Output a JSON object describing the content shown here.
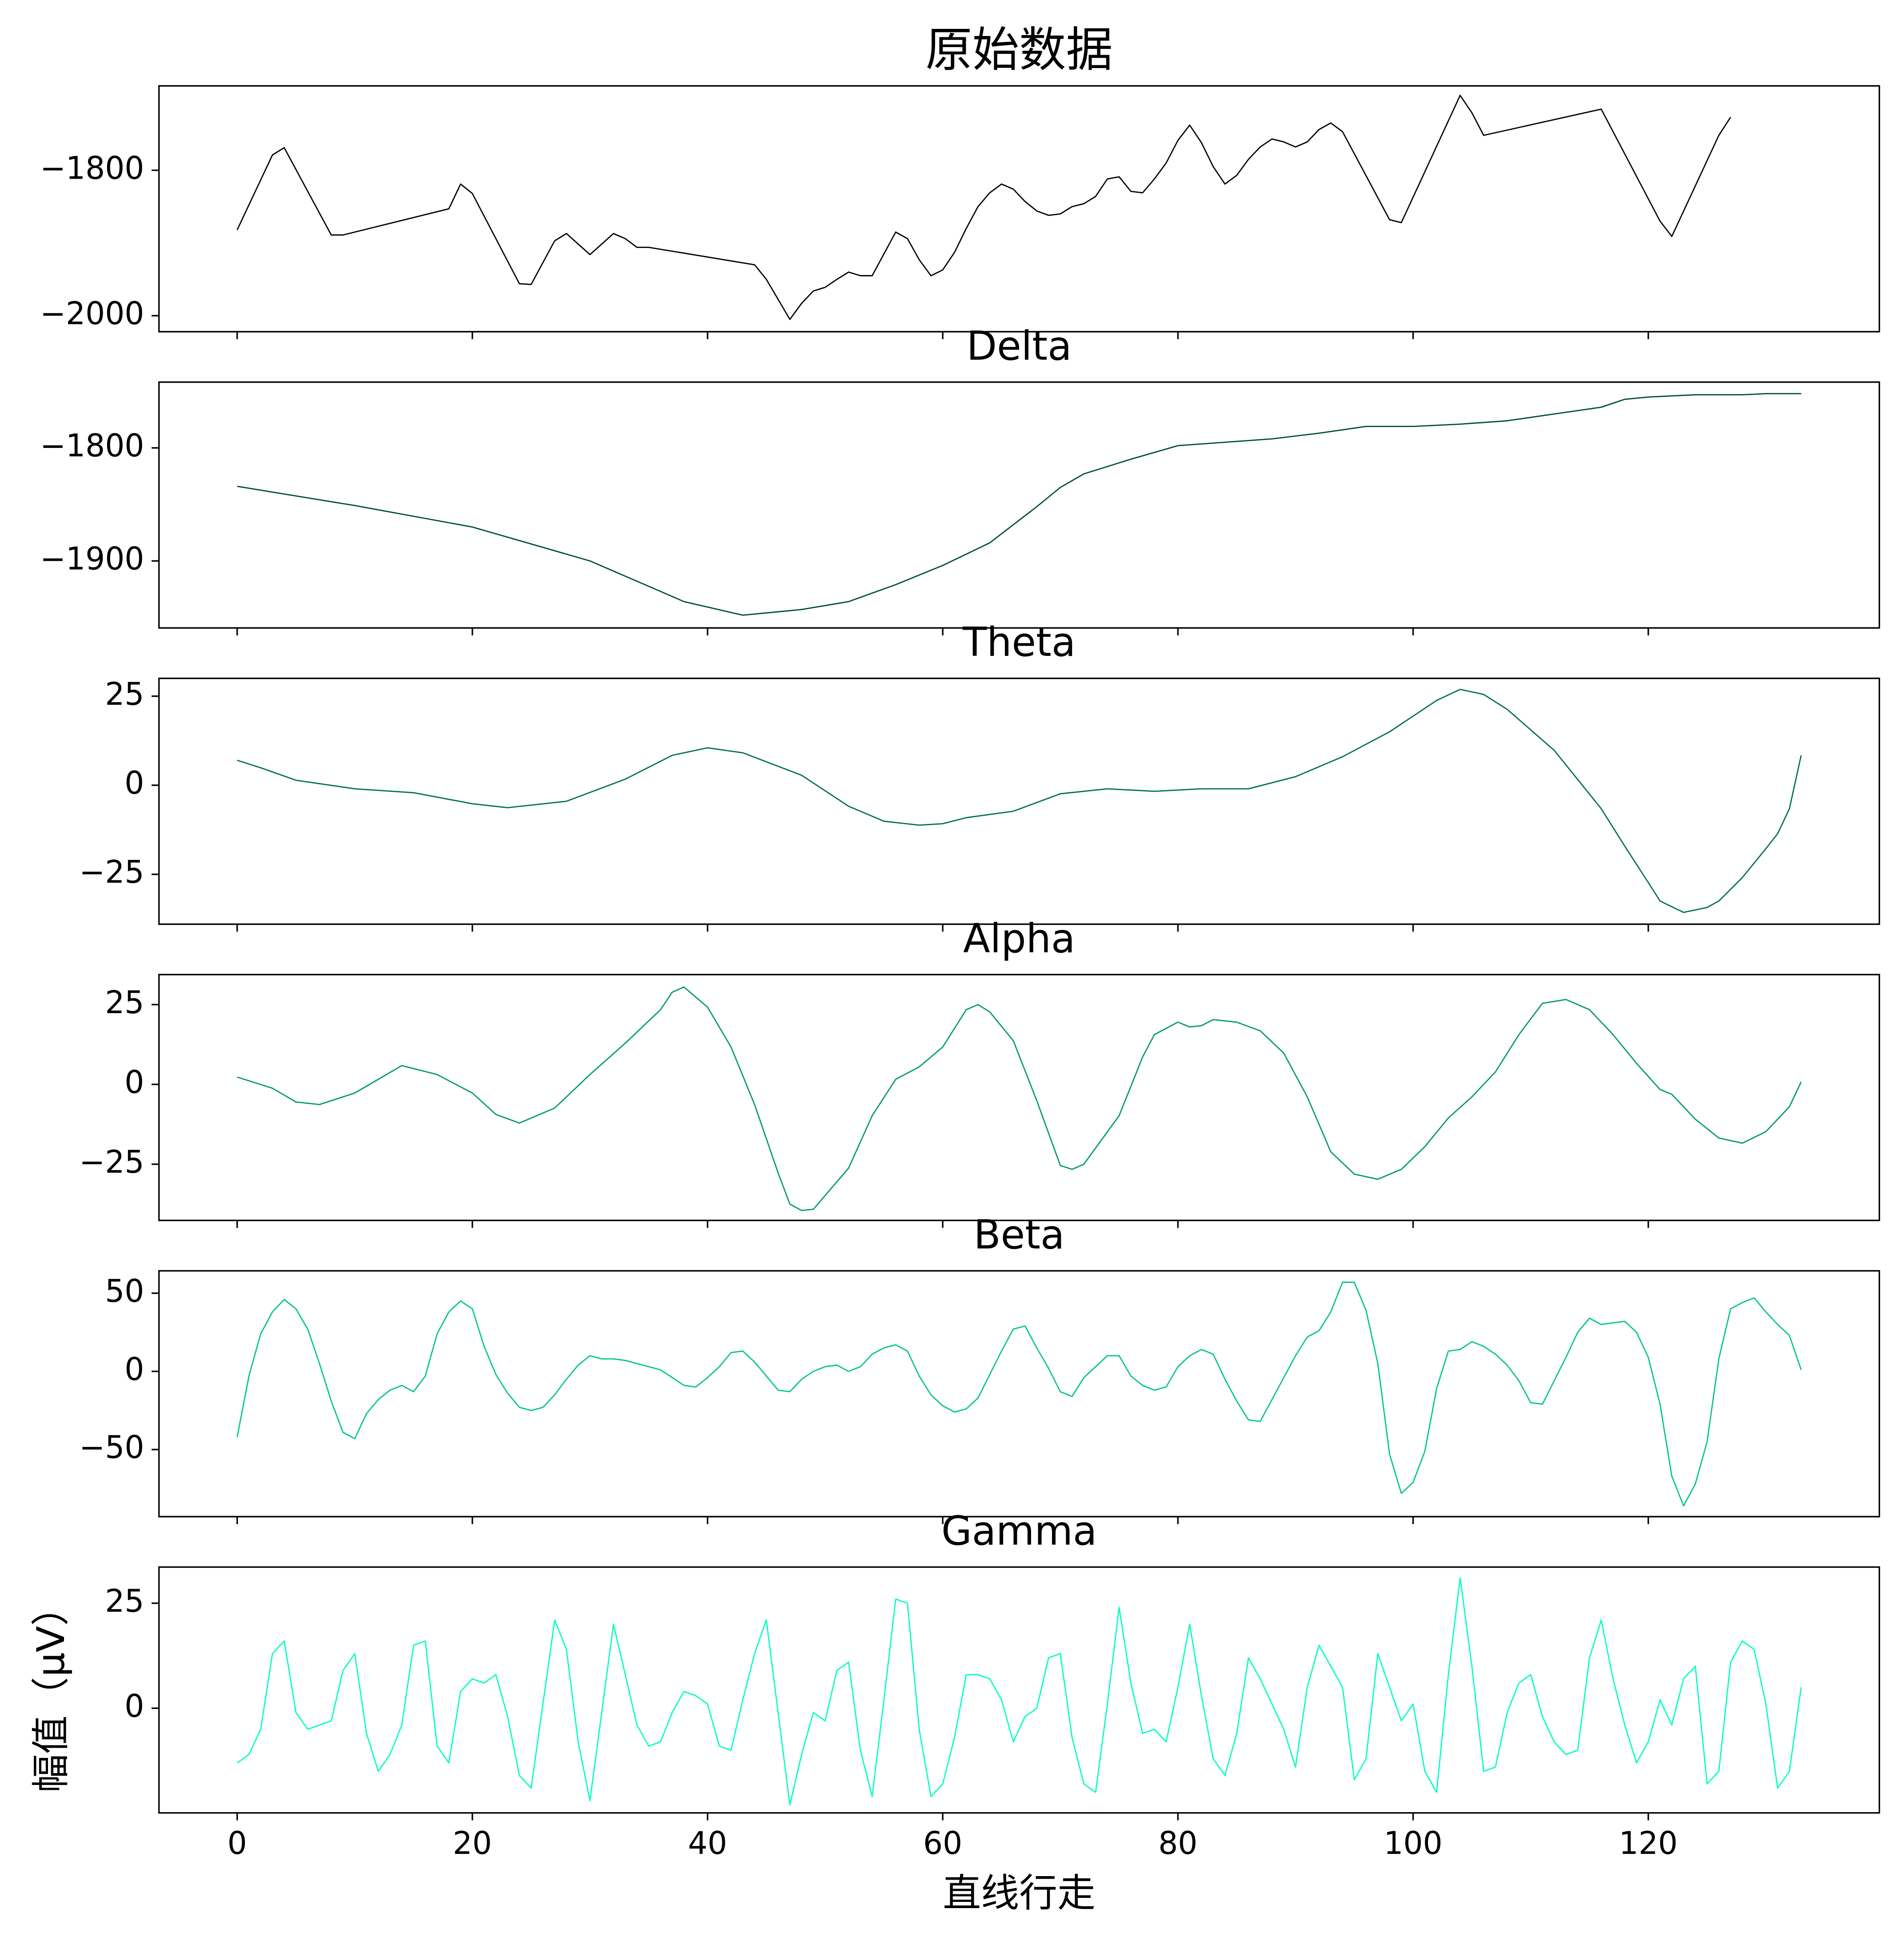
{
  "chart_data": [
    {
      "type": "line",
      "title": "原始数据",
      "color": "#000000",
      "x": [
        0,
        3,
        4,
        8,
        9,
        18,
        19,
        20,
        24,
        25,
        27,
        28,
        30,
        32,
        33,
        34,
        35,
        44,
        45,
        47,
        48,
        49,
        50,
        51,
        52,
        53,
        54,
        56,
        57,
        58,
        59,
        60,
        61,
        62,
        63,
        64,
        65,
        66,
        67,
        68,
        69,
        70,
        71,
        72,
        73,
        74,
        75,
        76,
        77,
        78,
        79,
        80,
        81,
        82,
        83,
        84,
        85,
        86,
        87,
        88,
        89,
        90,
        91,
        92,
        93,
        94,
        98,
        99,
        104,
        105,
        106,
        116,
        121,
        122,
        126,
        127
      ],
      "values": [
        -1882,
        -1779,
        -1769,
        -1889,
        -1889,
        -1853,
        -1819,
        -1832,
        -1956,
        -1957,
        -1897,
        -1887,
        -1916,
        -1887,
        -1894,
        -1906,
        -1906,
        -1930,
        -1950,
        -2005,
        -1983,
        -1966,
        -1961,
        -1950,
        -1940,
        -1945,
        -1945,
        -1885,
        -1894,
        -1923,
        -1945,
        -1937,
        -1913,
        -1880,
        -1850,
        -1831,
        -1819,
        -1826,
        -1843,
        -1856,
        -1862,
        -1860,
        -1850,
        -1846,
        -1836,
        -1812,
        -1809,
        -1829,
        -1831,
        -1812,
        -1790,
        -1759,
        -1738,
        -1762,
        -1795,
        -1819,
        -1807,
        -1785,
        -1768,
        -1757,
        -1761,
        -1768,
        -1761,
        -1744,
        -1735,
        -1747,
        -1868,
        -1872,
        -1697,
        -1721,
        -1752,
        -1716,
        -1870,
        -1891,
        -1752,
        -1727
      ],
      "xlim": [
        -6.65,
        139.65
      ],
      "ylim": [
        -2022,
        -1684
      ],
      "xticks": [
        0,
        20,
        40,
        60,
        80,
        100,
        120
      ],
      "yticks": [
        {
          "value": -2000,
          "label": "−2000"
        },
        {
          "value": -1800,
          "label": "−1800"
        }
      ]
    },
    {
      "type": "line",
      "title": "Delta",
      "color": "#004d35",
      "x": [
        0,
        10,
        20,
        30,
        38,
        43,
        48,
        52,
        56,
        60,
        64,
        68,
        70,
        72,
        76,
        80,
        84,
        88,
        92,
        96,
        100,
        104,
        108,
        112,
        116,
        118,
        120,
        124,
        128,
        130,
        133
      ],
      "values": [
        -1834,
        -1851,
        -1870,
        -1900,
        -1936,
        -1948,
        -1943,
        -1936,
        -1921,
        -1904,
        -1884,
        -1852,
        -1835,
        -1823,
        -1810,
        -1798,
        -1795,
        -1792,
        -1787,
        -1781,
        -1781,
        -1779,
        -1776,
        -1770,
        -1764,
        -1757,
        -1755,
        -1753,
        -1753,
        -1752,
        -1752
      ],
      "xlim": [
        -6.65,
        139.65
      ],
      "ylim": [
        -1959.3,
        -1741.8
      ],
      "xticks": [
        0,
        20,
        40,
        60,
        80,
        100,
        120
      ],
      "yticks": [
        {
          "value": -1900,
          "label": "−1900"
        },
        {
          "value": -1800,
          "label": "−1800"
        }
      ]
    },
    {
      "type": "line",
      "title": "Theta",
      "color": "#00704d",
      "x": [
        0,
        2,
        5,
        10,
        15,
        20,
        23,
        28,
        33,
        37,
        40,
        43,
        48,
        52,
        55,
        58,
        60,
        62,
        66,
        70,
        74,
        78,
        82,
        86,
        90,
        94,
        98,
        102,
        104,
        106,
        108,
        112,
        116,
        118,
        120,
        121,
        123,
        125,
        126,
        128,
        130,
        131,
        132,
        133
      ],
      "values": [
        7,
        4.9,
        1.4,
        -1,
        -2.1,
        -5.2,
        -6.3,
        -4.5,
        1.7,
        8.4,
        10.5,
        9.1,
        2.8,
        -5.9,
        -10.1,
        -11.2,
        -10.8,
        -9.1,
        -7.3,
        -2.4,
        -1,
        -1.7,
        -1,
        -1,
        2.4,
        8,
        15,
        23.8,
        26.9,
        25.5,
        21.3,
        9.8,
        -6.6,
        -17.1,
        -27.3,
        -32.5,
        -35.7,
        -34.3,
        -32.5,
        -25.9,
        -17.8,
        -13.6,
        -6.6,
        8.4
      ],
      "xlim": [
        -6.65,
        139.65
      ],
      "ylim": [
        -39,
        30
      ],
      "xticks": [
        0,
        20,
        40,
        60,
        80,
        100,
        120
      ],
      "yticks": [
        {
          "value": -25,
          "label": "−25"
        },
        0,
        25
      ]
    },
    {
      "type": "line",
      "title": "Alpha",
      "color": "#00996a",
      "x": [
        0,
        3,
        5,
        7,
        10,
        12,
        14,
        17,
        20,
        22,
        24,
        27,
        30,
        33,
        36,
        37,
        38,
        40,
        42,
        44,
        46,
        47,
        48,
        49,
        52,
        54,
        56,
        58,
        60,
        62,
        63,
        64,
        66,
        68,
        70,
        71,
        72,
        75,
        77,
        78,
        80,
        81,
        82,
        83,
        85,
        87,
        89,
        91,
        93,
        95,
        97,
        99,
        101,
        103,
        105,
        107,
        109,
        111,
        113,
        115,
        117,
        119,
        121,
        122,
        124,
        126,
        128,
        130,
        132,
        133
      ],
      "values": [
        2.3,
        -1.2,
        -5.5,
        -6.3,
        -2.7,
        1.6,
        5.9,
        3.1,
        -2.7,
        -9.4,
        -12.1,
        -7.4,
        3.1,
        12.9,
        23.4,
        28.9,
        30.5,
        24.2,
        11.7,
        -6.3,
        -27.7,
        -37.5,
        -39.5,
        -39.1,
        -26.2,
        -9.8,
        1.6,
        5.5,
        11.7,
        23.4,
        25,
        22.7,
        13.7,
        -5.1,
        -25.4,
        -26.6,
        -25,
        -9.8,
        8.6,
        15.6,
        19.5,
        18,
        18.4,
        20.3,
        19.5,
        16.8,
        9.8,
        -3.9,
        -21.1,
        -28.1,
        -29.7,
        -26.6,
        -19.5,
        -10.5,
        -3.9,
        3.9,
        15.6,
        25.4,
        26.6,
        23.4,
        15.6,
        6.6,
        -1.6,
        -3.1,
        -10.9,
        -16.8,
        -18.4,
        -14.8,
        -7,
        0.8
      ],
      "xlim": [
        -6.65,
        139.65
      ],
      "ylim": [
        -42.6,
        34.4
      ],
      "xticks": [
        0,
        20,
        40,
        60,
        80,
        100,
        120
      ],
      "yticks": [
        {
          "value": -25,
          "label": "−25"
        },
        0,
        25
      ]
    },
    {
      "type": "line",
      "title": "Beta",
      "color": "#00c585",
      "x": [
        0,
        1,
        2,
        3,
        4,
        5,
        6,
        7,
        8,
        9,
        10,
        11,
        12,
        13,
        14,
        15,
        16,
        17,
        18,
        19,
        20,
        21,
        22,
        23,
        24,
        25,
        26,
        27,
        28,
        29,
        30,
        31,
        32,
        33,
        34,
        35,
        36,
        37,
        38,
        39,
        40,
        41,
        42,
        43,
        44,
        45,
        46,
        47,
        48,
        49,
        50,
        51,
        52,
        53,
        54,
        55,
        56,
        57,
        58,
        59,
        60,
        61,
        62,
        63,
        64,
        65,
        66,
        67,
        68,
        69,
        70,
        71,
        72,
        73,
        74,
        75,
        76,
        77,
        78,
        79,
        80,
        81,
        82,
        83,
        84,
        85,
        86,
        87,
        88,
        89,
        90,
        91,
        92,
        93,
        94,
        95,
        96,
        97,
        98,
        99,
        100,
        101,
        102,
        103,
        104,
        105,
        106,
        107,
        108,
        109,
        110,
        111,
        112,
        113,
        114,
        115,
        116,
        117,
        118,
        119,
        120,
        121,
        122,
        123,
        124,
        125,
        126,
        127,
        128,
        129,
        130,
        131,
        132,
        133
      ],
      "values": [
        -42,
        -3,
        24,
        38,
        46,
        40,
        27,
        5,
        -19,
        -39,
        -43,
        -27,
        -18,
        -12,
        -9,
        -13,
        -3,
        24,
        38,
        45,
        40,
        16,
        -2,
        -14,
        -23,
        -25,
        -23,
        -15,
        -5,
        4,
        10,
        8,
        8,
        7,
        5,
        3,
        1,
        -4,
        -9,
        -10,
        -4,
        3,
        12,
        13,
        6,
        -3,
        -12,
        -13,
        -5,
        0,
        3,
        4,
        0,
        3,
        11,
        15,
        17,
        13,
        -3,
        -15,
        -22,
        -26,
        -24,
        -17,
        -2,
        13,
        27,
        29,
        15,
        2,
        -13,
        -16,
        -4,
        3,
        10,
        10,
        -3,
        -9,
        -12,
        -10,
        3,
        10,
        14,
        11,
        -5,
        -19,
        -31,
        -32,
        -18,
        -4,
        10,
        22,
        26,
        38,
        57,
        57,
        39,
        5,
        -53,
        -78,
        -71,
        -51,
        -11,
        13,
        14,
        19,
        16,
        11,
        4,
        -6,
        -20,
        -21,
        -6,
        9,
        25,
        34,
        30,
        31,
        32,
        25,
        9,
        -21,
        -67,
        -86,
        -72,
        -45,
        8,
        40,
        44,
        47,
        38,
        30,
        23,
        1
      ],
      "xlim": [
        -6.65,
        139.65
      ],
      "ylim": [
        -92.9,
        64.3
      ],
      "xticks": [
        0,
        20,
        40,
        60,
        80,
        100,
        120
      ],
      "yticks": [
        {
          "value": -50,
          "label": "−50"
        },
        0,
        50
      ]
    },
    {
      "type": "line",
      "title": "Gamma",
      "color": "#00ffc0",
      "xlabel": "直线行走",
      "ylabel": "幅值（μV）",
      "x": [
        0,
        1,
        2,
        3,
        4,
        5,
        6,
        7,
        8,
        9,
        10,
        11,
        12,
        13,
        14,
        15,
        16,
        17,
        18,
        19,
        20,
        21,
        22,
        23,
        24,
        25,
        26,
        27,
        28,
        29,
        30,
        31,
        32,
        33,
        34,
        35,
        36,
        37,
        38,
        39,
        40,
        41,
        42,
        43,
        44,
        45,
        46,
        47,
        48,
        49,
        50,
        51,
        52,
        53,
        54,
        55,
        56,
        57,
        58,
        59,
        60,
        61,
        62,
        63,
        64,
        65,
        66,
        67,
        68,
        69,
        70,
        71,
        72,
        73,
        74,
        75,
        76,
        77,
        78,
        79,
        80,
        81,
        82,
        83,
        84,
        85,
        86,
        87,
        88,
        89,
        90,
        91,
        92,
        93,
        94,
        95,
        96,
        97,
        98,
        99,
        100,
        101,
        102,
        103,
        104,
        105,
        106,
        107,
        108,
        109,
        110,
        111,
        112,
        113,
        114,
        115,
        116,
        117,
        118,
        119,
        120,
        121,
        122,
        123,
        124,
        125,
        126,
        127,
        128,
        129,
        130,
        131,
        132,
        133
      ],
      "values": [
        -13,
        -11,
        -5,
        13,
        16,
        -1,
        -5,
        -4,
        -3,
        9,
        13,
        -6,
        -15,
        -11,
        -4,
        15,
        16,
        -9,
        -13,
        4,
        7,
        6,
        8,
        -2,
        -16,
        -19,
        1,
        21,
        14,
        -8,
        -22,
        -1,
        20,
        8,
        -4,
        -9,
        -8,
        -1,
        4,
        3,
        1,
        -9,
        -10,
        2,
        13,
        21,
        -1,
        -23,
        -11,
        -1,
        -3,
        9,
        11,
        -10,
        -21,
        2,
        26,
        25,
        -5,
        -21,
        -18,
        -7,
        8,
        8,
        7,
        2,
        -8,
        -2,
        0,
        12,
        13,
        -7,
        -18,
        -20,
        1,
        24,
        6,
        -6,
        -5,
        -8,
        5,
        20,
        3,
        -12,
        -16,
        -6,
        12,
        7,
        1,
        -5,
        -14,
        5,
        15,
        10,
        5,
        -17,
        -12,
        13,
        5,
        -3,
        1,
        -15,
        -20,
        8,
        31,
        10,
        -15,
        -14,
        -1,
        6,
        8,
        -2,
        -8,
        -11,
        -10,
        12,
        21,
        7,
        -4,
        -13,
        -8,
        2,
        -4,
        7,
        10,
        -18,
        -15,
        11,
        16,
        14,
        1,
        -19,
        -15,
        5
      ],
      "xlim": [
        -6.65,
        139.65
      ],
      "ylim": [
        -24.9,
        33.6
      ],
      "xticks": [
        0,
        20,
        40,
        60,
        80,
        100,
        120
      ],
      "yticks": [
        0,
        25
      ]
    }
  ]
}
